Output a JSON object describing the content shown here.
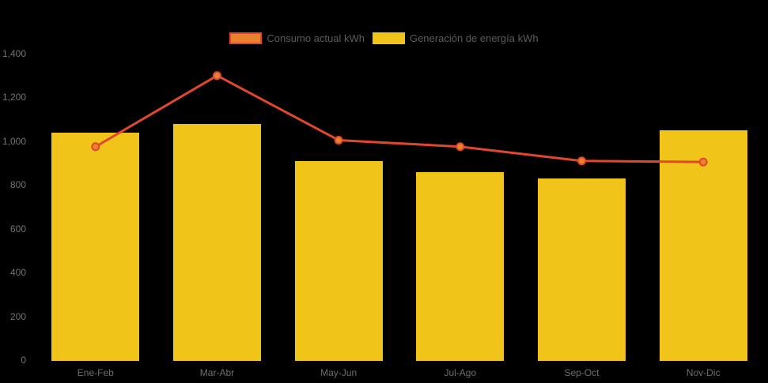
{
  "legend": {
    "items": [
      {
        "label": "Consumo actual kWh",
        "swatch_fill": "#E8822C",
        "swatch_border": "#E2472E"
      },
      {
        "label": "Generación de energía kWh",
        "swatch_fill": "#F0C419",
        "swatch_border": "#F0C419"
      }
    ]
  },
  "chart_data": {
    "type": "bar+line",
    "categories": [
      "Ene-Feb",
      "Mar-Abr",
      "May-Jun",
      "Jul-Ago",
      "Sep-Oct",
      "Nov-Dic"
    ],
    "series": [
      {
        "name": "Consumo actual kWh",
        "type": "line",
        "values": [
          975,
          1300,
          1005,
          975,
          910,
          905
        ],
        "line_color": "#E2472E",
        "marker_fill": "#E8822C"
      },
      {
        "name": "Generación de energía kWh",
        "type": "bar",
        "values": [
          1040,
          1080,
          910,
          860,
          830,
          1050
        ],
        "bar_color": "#F0C419"
      }
    ],
    "ylim": [
      0,
      1400
    ],
    "ytick_step": 200,
    "ytick_labels": [
      "0",
      "200",
      "400",
      "600",
      "800",
      "1,000",
      "1,200",
      "1,400"
    ],
    "grid": false,
    "legend_position": "top-center",
    "background_color": "#000000",
    "axis_text_color": "#707070"
  }
}
